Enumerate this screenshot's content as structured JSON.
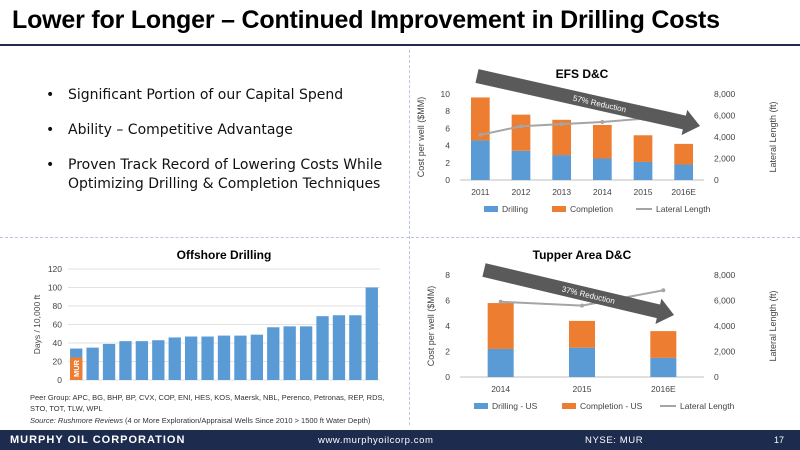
{
  "slide": {
    "title": "Lower for Longer – Continued Improvement in Drilling Costs",
    "bullets": [
      "Significant Portion of our Capital Spend",
      "Ability – Competitive Advantage",
      "Proven Track Record of Lowering Costs While Optimizing Drilling & Completion Techniques"
    ],
    "peer_group_note": "Peer Group: APC, BG, BHP, BP, CVX, COP, ENI, HES, KOS, Maersk, NBL, Perenco, Petronas, REP, RDS, STO, TOT, TLW, WPL",
    "source_prefix": "Source: Rushmore Reviews",
    "source_rest": "(4 or More Exploration/Appraisal Wells Since 2010 > 1500 ft Water Depth)"
  },
  "footer": {
    "company": "MURPHY OIL CORPORATION",
    "url": "www.murphyoilcorp.com",
    "ticker": "NYSE: MUR",
    "page": "17"
  },
  "colors": {
    "drilling": "#5b9bd5",
    "completion": "#ed7d31",
    "lateral": "#a5a5a5",
    "arrow": "#5a5a5a",
    "footer_bg": "#1d2b4f"
  },
  "chart_data": [
    {
      "id": "efs",
      "type": "bar",
      "stacked": true,
      "title": "EFS D&C",
      "ylabel": "Cost per well ($MM)",
      "y2label": "Lateral Length (ft)",
      "ylim": [
        0,
        10
      ],
      "yticks": [
        0,
        2,
        4,
        6,
        8,
        10
      ],
      "y2lim": [
        0,
        8000
      ],
      "y2ticks": [
        "0",
        "2,000",
        "4,000",
        "6,000",
        "8,000"
      ],
      "categories": [
        "2011",
        "2012",
        "2013",
        "2014",
        "2015",
        "2016E"
      ],
      "series": [
        {
          "name": "Drilling",
          "kind": "bar",
          "values": [
            4.6,
            3.4,
            2.9,
            2.5,
            2.1,
            1.8
          ]
        },
        {
          "name": "Completion",
          "kind": "bar",
          "values": [
            5.0,
            4.2,
            4.1,
            3.9,
            3.1,
            2.4
          ]
        },
        {
          "name": "Lateral Length",
          "kind": "line",
          "axis": "y2",
          "values": [
            4200,
            5000,
            5200,
            5400,
            5700,
            5700
          ]
        }
      ],
      "annotation": "57% Reduction",
      "legend": "bottom"
    },
    {
      "id": "offshore",
      "type": "bar",
      "title": "Offshore Drilling",
      "ylabel": "Days / 10,000 ft",
      "ylim": [
        0,
        120
      ],
      "yticks": [
        0,
        20,
        40,
        60,
        80,
        100,
        120
      ],
      "highlight_label": "MUR",
      "values": [
        34,
        35,
        39,
        42,
        42,
        43,
        46,
        47,
        47,
        48,
        48,
        49,
        57,
        58,
        58,
        69,
        70,
        70,
        100
      ],
      "highlight_index": 0
    },
    {
      "id": "tupper",
      "type": "bar",
      "stacked": true,
      "title": "Tupper Area D&C",
      "ylabel": "Cost per well ($MM)",
      "y2label": "Lateral Length (ft)",
      "ylim": [
        0,
        8
      ],
      "yticks": [
        0,
        2,
        4,
        6,
        8
      ],
      "y2lim": [
        0,
        8000
      ],
      "y2ticks": [
        "0",
        "2,000",
        "4,000",
        "6,000",
        "8,000"
      ],
      "categories": [
        "2014",
        "2015",
        "2016E"
      ],
      "series": [
        {
          "name": "Drilling - US",
          "kind": "bar",
          "values": [
            2.2,
            2.3,
            1.5
          ]
        },
        {
          "name": "Completion - US",
          "kind": "bar",
          "values": [
            3.6,
            2.1,
            2.1
          ]
        },
        {
          "name": "Lateral Length",
          "kind": "line",
          "axis": "y2",
          "values": [
            5900,
            5600,
            6800
          ]
        }
      ],
      "annotation": "37% Reduction",
      "legend": "bottom"
    }
  ]
}
